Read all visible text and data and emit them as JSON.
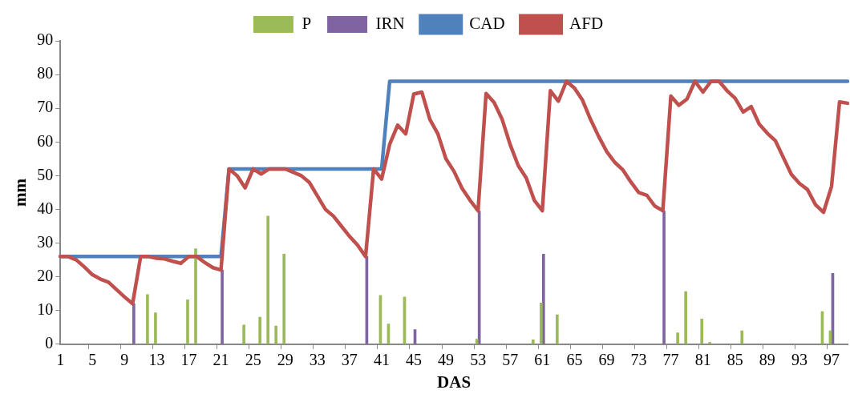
{
  "chart_data": {
    "type": "bar",
    "xlabel": "DAS",
    "ylabel": "mm",
    "categories": [
      "1",
      null,
      null,
      null,
      "5",
      null,
      null,
      null,
      "9",
      null,
      null,
      null,
      "13",
      null,
      null,
      null,
      "17",
      null,
      null,
      null,
      "21",
      null,
      null,
      null,
      "25",
      null,
      null,
      null,
      "29",
      null,
      null,
      null,
      "33",
      null,
      null,
      null,
      "37",
      null,
      null,
      null,
      "41",
      null,
      null,
      null,
      "45",
      null,
      null,
      null,
      "49",
      null,
      null,
      null,
      "53",
      null,
      null,
      null,
      "57",
      null,
      null,
      null,
      "61",
      null,
      null,
      null,
      "65",
      null,
      null,
      null,
      "69",
      null,
      null,
      null,
      "73",
      null,
      null,
      null,
      "77",
      null,
      null,
      null,
      "81",
      null,
      null,
      null,
      "85",
      null,
      null,
      null,
      "89",
      null,
      null,
      null,
      "93",
      null,
      null,
      null,
      "97",
      null,
      null
    ],
    "series": [
      {
        "name": "P",
        "color": "#9bbb59",
        "values": [
          null,
          null,
          null,
          null,
          null,
          null,
          null,
          null,
          null,
          null,
          null,
          14.7,
          9.3,
          null,
          null,
          null,
          13.2,
          28.3,
          null,
          null,
          null,
          null,
          null,
          5.7,
          null,
          8,
          38,
          5.4,
          26.7,
          null,
          null,
          null,
          null,
          null,
          null,
          null,
          null,
          null,
          null,
          null,
          14.5,
          6,
          null,
          14,
          null,
          null,
          null,
          null,
          null,
          null,
          null,
          null,
          1.5,
          null,
          null,
          null,
          null,
          null,
          null,
          1.3,
          12.2,
          null,
          8.7,
          null,
          null,
          null,
          null,
          null,
          null,
          null,
          null,
          null,
          null,
          null,
          null,
          null,
          null,
          3.4,
          15.6,
          null,
          7.5,
          0.5,
          null,
          null,
          null,
          4,
          null,
          null,
          null,
          null,
          null,
          null,
          null,
          null,
          null,
          9.7,
          4,
          null,
          null
        ]
      },
      {
        "name": "IRN",
        "color": "#8064a2",
        "values": [
          null,
          null,
          null,
          null,
          null,
          null,
          null,
          null,
          null,
          12,
          null,
          null,
          null,
          null,
          null,
          null,
          null,
          null,
          null,
          null,
          22,
          null,
          null,
          null,
          null,
          null,
          null,
          null,
          null,
          null,
          null,
          null,
          null,
          null,
          null,
          null,
          null,
          null,
          26,
          null,
          null,
          null,
          null,
          null,
          4.3,
          null,
          null,
          null,
          null,
          null,
          null,
          null,
          39.5,
          null,
          null,
          null,
          null,
          null,
          null,
          null,
          26.7,
          null,
          null,
          null,
          null,
          null,
          null,
          null,
          null,
          null,
          null,
          null,
          null,
          null,
          null,
          39.5,
          null,
          null,
          null,
          null,
          null,
          null,
          null,
          null,
          null,
          null,
          null,
          null,
          null,
          null,
          null,
          null,
          null,
          null,
          null,
          null,
          21,
          null,
          null
        ]
      },
      {
        "name": "CAD",
        "type": "line",
        "color": "#4f81bd",
        "values": [
          26,
          26,
          26,
          26,
          26,
          26,
          26,
          26,
          26,
          26,
          26,
          26,
          26,
          26,
          26,
          26,
          26,
          26,
          26,
          26,
          26,
          52,
          52,
          52,
          52,
          52,
          52,
          52,
          52,
          52,
          52,
          52,
          52,
          52,
          52,
          52,
          52,
          52,
          52,
          52,
          52,
          78,
          78,
          78,
          78,
          78,
          78,
          78,
          78,
          78,
          78,
          78,
          78,
          78,
          78,
          78,
          78,
          78,
          78,
          78,
          78,
          78,
          78,
          78,
          78,
          78,
          78,
          78,
          78,
          78,
          78,
          78,
          78,
          78,
          78,
          78,
          78,
          78,
          78,
          78,
          78,
          78,
          78,
          78,
          78,
          78,
          78,
          78,
          78,
          78,
          78,
          78,
          78,
          78,
          78,
          78,
          78,
          78,
          78
        ]
      },
      {
        "name": "AFD",
        "type": "line",
        "color": "#c0504d",
        "values": [
          26,
          26,
          25,
          22.9,
          20.6,
          19.3,
          18.4,
          16.2,
          14,
          12,
          26,
          26,
          25.5,
          25.3,
          24.6,
          24,
          26,
          26,
          24.2,
          22.7,
          22,
          52,
          50,
          46.4,
          52,
          50.5,
          52,
          52,
          52,
          51,
          50,
          48,
          44,
          40,
          38,
          35,
          32,
          29.4,
          26,
          52,
          49,
          59.3,
          65,
          62.4,
          74.2,
          74.8,
          66.7,
          62.4,
          55,
          51.3,
          46.3,
          42.7,
          39.6,
          74.4,
          71.7,
          66.7,
          59.2,
          53,
          49.3,
          42.7,
          39.6,
          75.2,
          72.1,
          78,
          76,
          72.4,
          66.7,
          61.7,
          57.2,
          54,
          51.8,
          48.2,
          45,
          44.2,
          41,
          39.6,
          73.6,
          70.9,
          72.7,
          78,
          74.8,
          78,
          78,
          75.2,
          73,
          68.9,
          70.5,
          65.3,
          62.6,
          60.4,
          55.4,
          50.4,
          47.7,
          45.9,
          41.4,
          39.1,
          46.8,
          71.9,
          71.5
        ]
      }
    ],
    "ylim": [
      0,
      90
    ],
    "yticks": [
      0,
      10,
      20,
      30,
      40,
      50,
      60,
      70,
      80,
      90
    ],
    "grid": false,
    "legend": "top",
    "marker": "none",
    "line_style": "solid"
  }
}
